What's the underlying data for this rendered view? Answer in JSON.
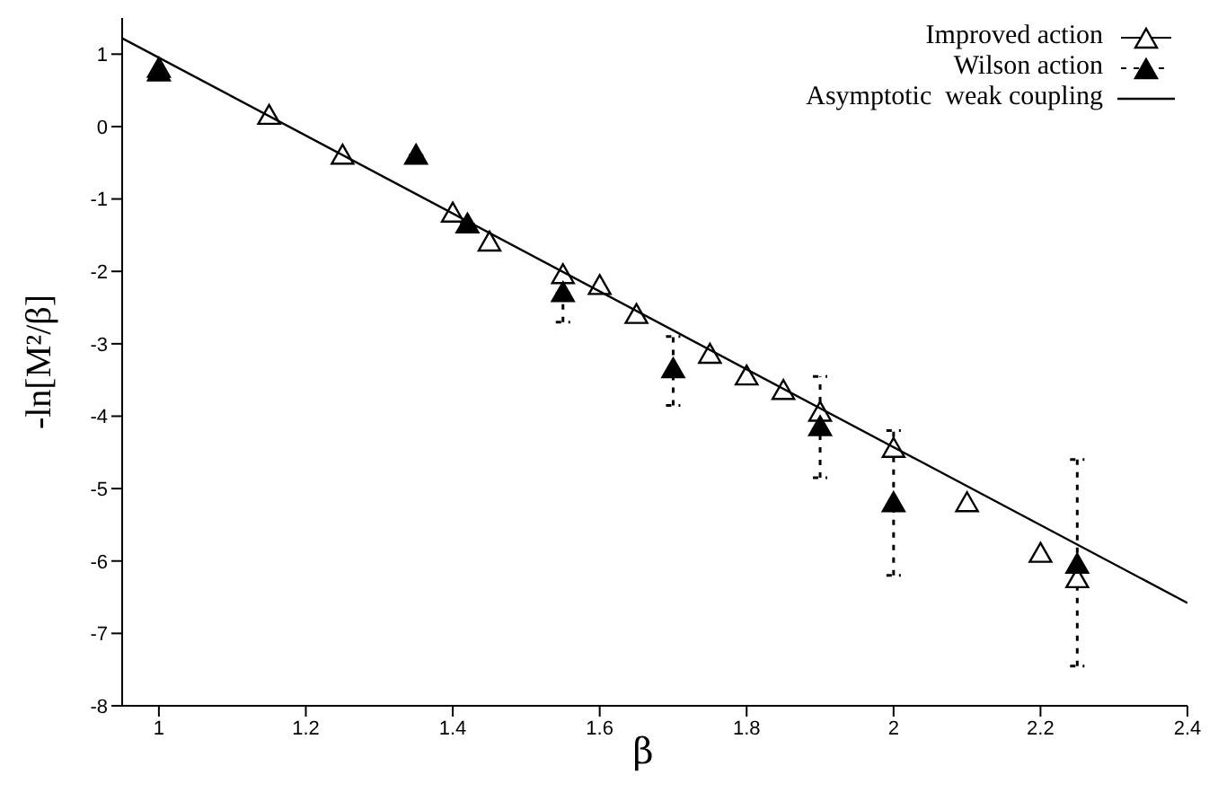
{
  "chart_data": {
    "type": "scatter",
    "xlabel": "β",
    "ylabel": "-ln[M²/β]",
    "xlim": [
      0.95,
      2.4
    ],
    "ylim": [
      -8,
      1.5
    ],
    "xticks": [
      1,
      1.2,
      1.4,
      1.6,
      1.8,
      2,
      2.2,
      2.4
    ],
    "yticks": [
      -8,
      -7,
      -6,
      -5,
      -4,
      -3,
      -2,
      -1,
      0,
      1
    ],
    "grid": false,
    "legend": "top right",
    "marker": "triangle",
    "series": [
      {
        "name": "Improved action",
        "color": "#000000",
        "x": [
          1,
          1.15,
          1.25,
          1.4,
          1.45,
          1.55,
          1.6,
          1.65,
          1.75,
          1.8,
          1.85,
          1.9,
          2,
          2.1,
          2.2,
          2.25
        ],
        "values": [
          0.8,
          0.15,
          -0.4,
          -1.2,
          -1.6,
          -2.05,
          -2.2,
          -2.6,
          -3.15,
          -3.45,
          -3.65,
          -3.95,
          -4.45,
          -5.2,
          -5.9,
          -6.25
        ]
      },
      {
        "name": "Wilson action",
        "color": "#000000",
        "line_style": "dashed",
        "x": [
          1,
          1.35,
          1.42,
          1.55,
          1.7,
          1.9,
          2,
          2.25
        ],
        "values": [
          0.75,
          -0.4,
          -1.35,
          -2.3,
          -3.35,
          -4.15,
          -5.2,
          -6.05
        ],
        "errors": [
          null,
          null,
          null,
          [
            -2.7,
            -2.3
          ],
          [
            -3.85,
            -2.9
          ],
          [
            -4.85,
            -3.45
          ],
          [
            -6.2,
            -4.2
          ],
          [
            -7.45,
            -4.6
          ]
        ]
      },
      {
        "name": "Asymptotic  weak coupling",
        "type": "line",
        "marker": "none",
        "color": "#000000",
        "x": [
          0.95,
          2.4
        ],
        "values": [
          1.22,
          -6.58
        ]
      }
    ]
  }
}
